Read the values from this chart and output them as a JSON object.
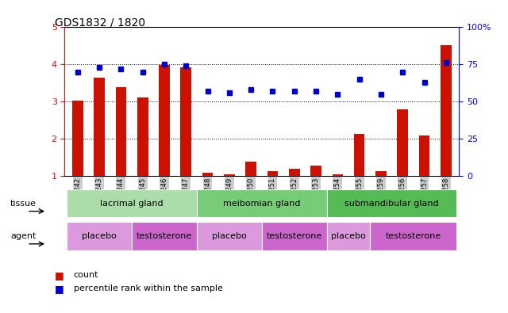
{
  "title": "GDS1832 / 1820",
  "samples": [
    "GSM91242",
    "GSM91243",
    "GSM91244",
    "GSM91245",
    "GSM91246",
    "GSM91247",
    "GSM91248",
    "GSM91249",
    "GSM91250",
    "GSM91251",
    "GSM91252",
    "GSM91253",
    "GSM91254",
    "GSM91255",
    "GSM91259",
    "GSM91256",
    "GSM91257",
    "GSM91258"
  ],
  "count_values": [
    3.02,
    3.65,
    3.38,
    3.1,
    3.98,
    3.92,
    1.08,
    1.05,
    1.38,
    1.12,
    1.18,
    1.28,
    1.05,
    2.12,
    1.12,
    2.78,
    2.08,
    4.52
  ],
  "percentile_values": [
    70,
    73,
    72,
    70,
    75,
    74,
    57,
    56,
    58,
    57,
    57,
    57,
    55,
    65,
    55,
    70,
    63,
    76
  ],
  "ylim_left": [
    1,
    5
  ],
  "ylim_right": [
    0,
    100
  ],
  "yticks_left": [
    1,
    2,
    3,
    4,
    5
  ],
  "yticks_right": [
    0,
    25,
    50,
    75,
    100
  ],
  "bar_color": "#cc1100",
  "dot_color": "#0000cc",
  "tissue_groups": [
    {
      "label": "lacrimal gland",
      "start": 0,
      "end": 5,
      "color": "#aaddaa"
    },
    {
      "label": "meibomian gland",
      "start": 6,
      "end": 11,
      "color": "#77cc77"
    },
    {
      "label": "submandibular gland",
      "start": 12,
      "end": 17,
      "color": "#55bb55"
    }
  ],
  "agent_groups": [
    {
      "label": "placebo",
      "start": 0,
      "end": 2,
      "color": "#dd99dd"
    },
    {
      "label": "testosterone",
      "start": 3,
      "end": 5,
      "color": "#cc66cc"
    },
    {
      "label": "placebo",
      "start": 6,
      "end": 8,
      "color": "#dd99dd"
    },
    {
      "label": "testosterone",
      "start": 9,
      "end": 11,
      "color": "#cc66cc"
    },
    {
      "label": "placebo",
      "start": 12,
      "end": 13,
      "color": "#dd99dd"
    },
    {
      "label": "testosterone",
      "start": 14,
      "end": 17,
      "color": "#cc66cc"
    }
  ],
  "legend_count_color": "#cc1100",
  "legend_pct_color": "#0000cc",
  "background_color": "#ffffff"
}
